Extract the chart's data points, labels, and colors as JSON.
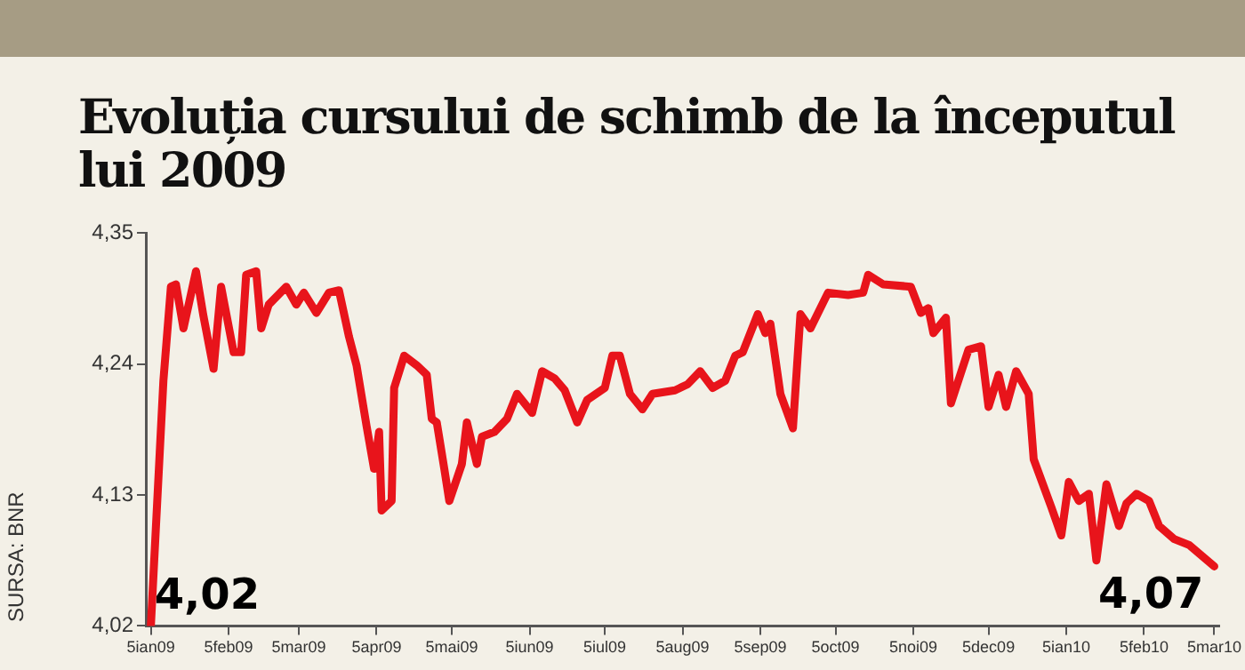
{
  "chart_data": {
    "type": "line",
    "title": "Evoluția cursului de schimb de la începutul lui 2009",
    "x": [
      "2009-01-05",
      "2009-01-10",
      "2009-01-13",
      "2009-01-15",
      "2009-01-18",
      "2009-01-23",
      "2009-01-26",
      "2009-01-30",
      "2009-02-02",
      "2009-02-07",
      "2009-02-10",
      "2009-02-12",
      "2009-02-16",
      "2009-02-18",
      "2009-02-21",
      "2009-02-28",
      "2009-03-04",
      "2009-03-07",
      "2009-03-12",
      "2009-03-17",
      "2009-03-21",
      "2009-03-25",
      "2009-03-28",
      "2009-04-01",
      "2009-04-04",
      "2009-04-06",
      "2009-04-07",
      "2009-04-11",
      "2009-04-12",
      "2009-04-16",
      "2009-04-21",
      "2009-04-25",
      "2009-04-27",
      "2009-04-29",
      "2009-05-02",
      "2009-05-04",
      "2009-05-09",
      "2009-05-11",
      "2009-05-15",
      "2009-05-17",
      "2009-05-22",
      "2009-05-27",
      "2009-05-31",
      "2009-06-06",
      "2009-06-10",
      "2009-06-15",
      "2009-06-19",
      "2009-06-24",
      "2009-06-28",
      "2009-07-05",
      "2009-07-08",
      "2009-07-11",
      "2009-07-15",
      "2009-07-20",
      "2009-07-24",
      "2009-08-02",
      "2009-08-07",
      "2009-08-12",
      "2009-08-17",
      "2009-08-22",
      "2009-08-26",
      "2009-08-29",
      "2009-09-04",
      "2009-09-07",
      "2009-09-09",
      "2009-09-13",
      "2009-09-18",
      "2009-09-21",
      "2009-09-25",
      "2009-10-02",
      "2009-10-10",
      "2009-10-16",
      "2009-10-18",
      "2009-10-24",
      "2009-11-04",
      "2009-11-08",
      "2009-11-11",
      "2009-11-13",
      "2009-11-18",
      "2009-11-20",
      "2009-11-27",
      "2009-12-02",
      "2009-12-05",
      "2009-12-09",
      "2009-12-12",
      "2009-12-16",
      "2009-12-21",
      "2009-12-23",
      "2009-12-30",
      "2010-01-03",
      "2010-01-06",
      "2010-01-10",
      "2010-01-14",
      "2010-01-17",
      "2010-01-21",
      "2010-01-26",
      "2010-01-29",
      "2010-02-02",
      "2010-02-07",
      "2010-02-11",
      "2010-02-17",
      "2010-02-23",
      "2010-03-05"
    ],
    "series": [
      {
        "color": "#e8141b",
        "values": [
          4.02,
          4.226,
          4.305,
          4.307,
          4.27,
          4.318,
          4.28,
          4.236,
          4.305,
          4.25,
          4.25,
          4.315,
          4.318,
          4.27,
          4.29,
          4.305,
          4.29,
          4.3,
          4.283,
          4.3,
          4.302,
          4.263,
          4.239,
          4.188,
          4.152,
          4.183,
          4.117,
          4.125,
          4.22,
          4.247,
          4.239,
          4.231,
          4.194,
          4.191,
          4.152,
          4.125,
          4.156,
          4.191,
          4.156,
          4.179,
          4.183,
          4.194,
          4.215,
          4.199,
          4.234,
          4.228,
          4.218,
          4.191,
          4.21,
          4.22,
          4.247,
          4.247,
          4.215,
          4.202,
          4.215,
          4.218,
          4.223,
          4.234,
          4.22,
          4.226,
          4.247,
          4.25,
          4.282,
          4.266,
          4.274,
          4.215,
          4.186,
          4.282,
          4.27,
          4.3,
          4.298,
          4.3,
          4.315,
          4.307,
          4.305,
          4.283,
          4.287,
          4.266,
          4.279,
          4.207,
          4.252,
          4.255,
          4.204,
          4.231,
          4.204,
          4.234,
          4.215,
          4.16,
          4.12,
          4.096,
          4.141,
          4.125,
          4.131,
          4.075,
          4.139,
          4.104,
          4.123,
          4.131,
          4.125,
          4.104,
          4.093,
          4.088,
          4.07
        ]
      }
    ],
    "xlim": [
      "2009-01-03",
      "2010-03-07"
    ],
    "xticks": [
      {
        "value": "2009-01-05",
        "label": "5ian09"
      },
      {
        "value": "2009-02-05",
        "label": "5feb09"
      },
      {
        "value": "2009-03-05",
        "label": "5mar09"
      },
      {
        "value": "2009-04-05",
        "label": "5apr09"
      },
      {
        "value": "2009-05-05",
        "label": "5mai09"
      },
      {
        "value": "2009-06-05",
        "label": "5iun09"
      },
      {
        "value": "2009-07-05",
        "label": "5iul09"
      },
      {
        "value": "2009-08-05",
        "label": "5aug09"
      },
      {
        "value": "2009-09-05",
        "label": "5sep09"
      },
      {
        "value": "2009-10-05",
        "label": "5oct09"
      },
      {
        "value": "2009-11-05",
        "label": "5noi09"
      },
      {
        "value": "2009-12-05",
        "label": "5dec09"
      },
      {
        "value": "2010-01-05",
        "label": "5ian10"
      },
      {
        "value": "2010-02-05",
        "label": "5feb10"
      },
      {
        "value": "2010-03-05",
        "label": "5mar10"
      }
    ],
    "ylim": [
      4.02,
      4.35
    ],
    "yticks": [
      {
        "value": 4.02,
        "label": "4,02"
      },
      {
        "value": 4.13,
        "label": "4,13"
      },
      {
        "value": 4.24,
        "label": "4,24"
      },
      {
        "value": 4.35,
        "label": "4,35"
      }
    ],
    "grid": false,
    "legend": false,
    "marker": "none",
    "line_style": "solid",
    "annotations": [
      {
        "text": "4,02",
        "x": "2009-01-05",
        "y": 4.02
      },
      {
        "text": "4,07",
        "x": "2010-03-05",
        "y": 4.07
      },
      "SURSA: BNR"
    ]
  }
}
